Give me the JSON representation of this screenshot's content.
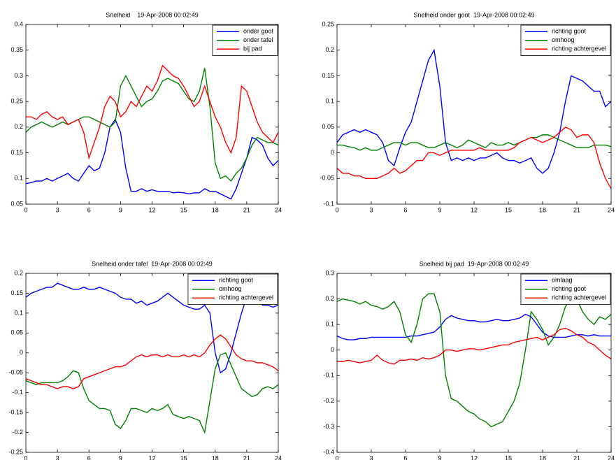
{
  "chart_data": [
    {
      "type": "line",
      "title": "Snelheid    19-Apr-2008 00:02:49",
      "x": [
        0,
        0.5,
        1,
        1.5,
        2,
        2.5,
        3,
        3.5,
        4,
        4.5,
        5,
        5.5,
        6,
        6.5,
        7,
        7.5,
        8,
        8.5,
        9,
        9.5,
        10,
        10.5,
        11,
        11.5,
        12,
        12.5,
        13,
        13.5,
        14,
        14.5,
        15,
        15.5,
        16,
        16.5,
        17,
        17.5,
        18,
        18.5,
        19,
        19.5,
        20,
        20.5,
        21,
        21.5,
        22,
        22.5,
        23,
        23.5,
        24
      ],
      "xlim": [
        0,
        24
      ],
      "xticks": [
        0,
        3,
        6,
        9,
        12,
        15,
        18,
        21,
        24
      ],
      "ylim": [
        0.05,
        0.4
      ],
      "yticks": [
        0.05,
        0.1,
        0.15,
        0.2,
        0.25,
        0.3,
        0.35,
        0.4
      ],
      "legend": "upper right",
      "series": [
        {
          "name": "onder goot",
          "color": "#0000ff",
          "values": [
            0.09,
            0.092,
            0.095,
            0.095,
            0.1,
            0.095,
            0.1,
            0.105,
            0.11,
            0.1,
            0.095,
            0.11,
            0.125,
            0.115,
            0.12,
            0.15,
            0.2,
            0.215,
            0.19,
            0.12,
            0.075,
            0.075,
            0.08,
            0.075,
            0.078,
            0.075,
            0.075,
            0.075,
            0.072,
            0.073,
            0.072,
            0.07,
            0.072,
            0.072,
            0.08,
            0.075,
            0.075,
            0.07,
            0.065,
            0.06,
            0.08,
            0.11,
            0.14,
            0.18,
            0.175,
            0.165,
            0.14,
            0.125,
            0.135
          ]
        },
        {
          "name": "onder tafel",
          "color": "#008000",
          "values": [
            0.19,
            0.2,
            0.205,
            0.21,
            0.205,
            0.2,
            0.205,
            0.21,
            0.205,
            0.21,
            0.215,
            0.22,
            0.22,
            0.215,
            0.21,
            0.205,
            0.2,
            0.21,
            0.28,
            0.3,
            0.28,
            0.26,
            0.24,
            0.25,
            0.255,
            0.27,
            0.29,
            0.295,
            0.29,
            0.285,
            0.27,
            0.255,
            0.25,
            0.27,
            0.315,
            0.24,
            0.13,
            0.1,
            0.105,
            0.095,
            0.11,
            0.12,
            0.14,
            0.165,
            0.18,
            0.175,
            0.17,
            0.17,
            0.165
          ]
        },
        {
          "name": "bij pad",
          "color": "#ff0000",
          "values": [
            0.22,
            0.22,
            0.215,
            0.225,
            0.23,
            0.22,
            0.215,
            0.22,
            0.205,
            0.21,
            0.215,
            0.19,
            0.14,
            0.17,
            0.2,
            0.24,
            0.26,
            0.25,
            0.22,
            0.23,
            0.25,
            0.24,
            0.26,
            0.28,
            0.27,
            0.29,
            0.32,
            0.31,
            0.3,
            0.295,
            0.28,
            0.26,
            0.24,
            0.25,
            0.28,
            0.25,
            0.22,
            0.2,
            0.17,
            0.15,
            0.18,
            0.28,
            0.27,
            0.24,
            0.21,
            0.19,
            0.18,
            0.17,
            0.19
          ]
        }
      ]
    },
    {
      "type": "line",
      "title": "Snelheid onder goot  19-Apr-2008 00:02:49",
      "x": [
        0,
        0.5,
        1,
        1.5,
        2,
        2.5,
        3,
        3.5,
        4,
        4.5,
        5,
        5.5,
        6,
        6.5,
        7,
        7.5,
        8,
        8.5,
        9,
        9.5,
        10,
        10.5,
        11,
        11.5,
        12,
        12.5,
        13,
        13.5,
        14,
        14.5,
        15,
        15.5,
        16,
        16.5,
        17,
        17.5,
        18,
        18.5,
        19,
        19.5,
        20,
        20.5,
        21,
        21.5,
        22,
        22.5,
        23,
        23.5,
        24
      ],
      "xlim": [
        0,
        24
      ],
      "xticks": [
        0,
        3,
        6,
        9,
        12,
        15,
        18,
        21,
        24
      ],
      "ylim": [
        -0.1,
        0.25
      ],
      "yticks": [
        -0.1,
        -0.05,
        0,
        0.05,
        0.1,
        0.15,
        0.2,
        0.25
      ],
      "legend": "upper right",
      "series": [
        {
          "name": "richting goot",
          "color": "#0000ff",
          "values": [
            0.02,
            0.035,
            0.04,
            0.045,
            0.04,
            0.045,
            0.04,
            0.035,
            0.02,
            -0.015,
            -0.025,
            0.01,
            0.04,
            0.06,
            0.1,
            0.14,
            0.18,
            0.2,
            0.13,
            0.02,
            -0.015,
            -0.01,
            -0.015,
            -0.01,
            -0.015,
            -0.01,
            -0.01,
            -0.005,
            0,
            -0.01,
            -0.015,
            -0.015,
            -0.02,
            -0.015,
            -0.01,
            -0.03,
            -0.04,
            -0.03,
            0,
            0.04,
            0.1,
            0.15,
            0.145,
            0.14,
            0.13,
            0.12,
            0.12,
            0.09,
            0.1
          ]
        },
        {
          "name": "omhoog",
          "color": "#008000",
          "values": [
            0.015,
            0.015,
            0.012,
            0.01,
            0.005,
            0.01,
            0.005,
            0.005,
            0.01,
            0.015,
            0.02,
            0.02,
            0.015,
            0.02,
            0.02,
            0.015,
            0.01,
            0.01,
            0.015,
            0.02,
            0.015,
            0.01,
            0.015,
            0.025,
            0.02,
            0.015,
            0.01,
            0.02,
            0.015,
            0.015,
            0.02,
            0.015,
            0.02,
            0.025,
            0.03,
            0.03,
            0.035,
            0.035,
            0.03,
            0.025,
            0.02,
            0.015,
            0.01,
            0.01,
            0.01,
            0.015,
            0.015,
            0.015,
            0.012
          ]
        },
        {
          "name": "richting achtergevel",
          "color": "#ff0000",
          "values": [
            -0.03,
            -0.04,
            -0.04,
            -0.045,
            -0.045,
            -0.05,
            -0.05,
            -0.05,
            -0.045,
            -0.04,
            -0.03,
            -0.04,
            -0.035,
            -0.025,
            -0.015,
            -0.015,
            0,
            0,
            -0.005,
            0,
            0.005,
            0.005,
            0.005,
            0.005,
            0.005,
            0.01,
            0.005,
            0.005,
            0.005,
            0.005,
            0.005,
            0.01,
            0.02,
            0.025,
            0.03,
            0.025,
            0.02,
            0.025,
            0.03,
            0.04,
            0.05,
            0.045,
            0.03,
            0.035,
            0.035,
            0.02,
            -0.02,
            -0.05,
            -0.07
          ]
        }
      ]
    },
    {
      "type": "line",
      "title": "Snelheid onder tafel  19-Apr-2008 00:02:49",
      "x": [
        0,
        0.5,
        1,
        1.5,
        2,
        2.5,
        3,
        3.5,
        4,
        4.5,
        5,
        5.5,
        6,
        6.5,
        7,
        7.5,
        8,
        8.5,
        9,
        9.5,
        10,
        10.5,
        11,
        11.5,
        12,
        12.5,
        13,
        13.5,
        14,
        14.5,
        15,
        15.5,
        16,
        16.5,
        17,
        17.5,
        18,
        18.5,
        19,
        19.5,
        20,
        20.5,
        21,
        21.5,
        22,
        22.5,
        23,
        23.5,
        24
      ],
      "xlim": [
        0,
        24
      ],
      "xticks": [
        0,
        3,
        6,
        9,
        12,
        15,
        18,
        21,
        24
      ],
      "ylim": [
        -0.25,
        0.2
      ],
      "yticks": [
        -0.25,
        -0.2,
        -0.15,
        -0.1,
        -0.05,
        0,
        0.05,
        0.1,
        0.15,
        0.2
      ],
      "legend": "upper right",
      "series": [
        {
          "name": "richting goot",
          "color": "#0000ff",
          "values": [
            0.14,
            0.15,
            0.155,
            0.16,
            0.165,
            0.165,
            0.175,
            0.17,
            0.165,
            0.16,
            0.16,
            0.165,
            0.16,
            0.16,
            0.165,
            0.16,
            0.155,
            0.15,
            0.14,
            0.135,
            0.135,
            0.125,
            0.13,
            0.12,
            0.125,
            0.13,
            0.14,
            0.15,
            0.14,
            0.13,
            0.12,
            0.115,
            0.11,
            0.11,
            0.12,
            0.1,
            0,
            -0.05,
            -0.04,
            0,
            0.05,
            0.1,
            0.14,
            0.15,
            0.14,
            0.12,
            0.12,
            0.115,
            0.12
          ]
        },
        {
          "name": "omhoog",
          "color": "#008000",
          "values": [
            -0.07,
            -0.075,
            -0.08,
            -0.075,
            -0.075,
            -0.075,
            -0.075,
            -0.07,
            -0.06,
            -0.045,
            -0.05,
            -0.09,
            -0.12,
            -0.13,
            -0.14,
            -0.14,
            -0.145,
            -0.18,
            -0.19,
            -0.17,
            -0.14,
            -0.14,
            -0.145,
            -0.15,
            -0.14,
            -0.145,
            -0.14,
            -0.13,
            -0.155,
            -0.16,
            -0.165,
            -0.16,
            -0.165,
            -0.17,
            -0.2,
            -0.12,
            -0.04,
            -0.005,
            0,
            -0.03,
            -0.06,
            -0.09,
            -0.1,
            -0.11,
            -0.105,
            -0.09,
            -0.085,
            -0.09,
            -0.08
          ]
        },
        {
          "name": "richting achtergevel",
          "color": "#ff0000",
          "values": [
            -0.065,
            -0.07,
            -0.075,
            -0.08,
            -0.08,
            -0.085,
            -0.09,
            -0.085,
            -0.085,
            -0.09,
            -0.085,
            -0.065,
            -0.06,
            -0.055,
            -0.05,
            -0.045,
            -0.04,
            -0.035,
            -0.035,
            -0.03,
            -0.02,
            -0.01,
            -0.005,
            -0.01,
            -0.005,
            -0.005,
            -0.01,
            -0.005,
            -0.01,
            -0.01,
            -0.005,
            -0.01,
            -0.005,
            -0.01,
            0,
            0.02,
            0.035,
            0.045,
            0.035,
            0.015,
            -0.005,
            -0.015,
            -0.02,
            -0.02,
            -0.025,
            -0.025,
            -0.03,
            -0.035,
            -0.045
          ]
        }
      ]
    },
    {
      "type": "line",
      "title": "Snelheid bij pad  19-Apr-2008 00:02:49",
      "x": [
        0,
        0.5,
        1,
        1.5,
        2,
        2.5,
        3,
        3.5,
        4,
        4.5,
        5,
        5.5,
        6,
        6.5,
        7,
        7.5,
        8,
        8.5,
        9,
        9.5,
        10,
        10.5,
        11,
        11.5,
        12,
        12.5,
        13,
        13.5,
        14,
        14.5,
        15,
        15.5,
        16,
        16.5,
        17,
        17.5,
        18,
        18.5,
        19,
        19.5,
        20,
        20.5,
        21,
        21.5,
        22,
        22.5,
        23,
        23.5,
        24
      ],
      "xlim": [
        0,
        24
      ],
      "xticks": [
        0,
        3,
        6,
        9,
        12,
        15,
        18,
        21,
        24
      ],
      "ylim": [
        -0.4,
        0.3
      ],
      "yticks": [
        -0.4,
        -0.3,
        -0.2,
        -0.1,
        0,
        0.1,
        0.2,
        0.3
      ],
      "legend": "upper right",
      "series": [
        {
          "name": "omlaag",
          "color": "#0000ff",
          "values": [
            0.055,
            0.045,
            0.04,
            0.04,
            0.045,
            0.045,
            0.05,
            0.05,
            0.05,
            0.05,
            0.05,
            0.05,
            0.05,
            0.055,
            0.055,
            0.06,
            0.065,
            0.07,
            0.09,
            0.12,
            0.135,
            0.125,
            0.12,
            0.115,
            0.115,
            0.11,
            0.11,
            0.115,
            0.12,
            0.115,
            0.115,
            0.12,
            0.125,
            0.14,
            0.13,
            0.1,
            0.07,
            0.055,
            0.05,
            0.05,
            0.05,
            0.055,
            0.06,
            0.06,
            0.055,
            0.06,
            0.055,
            0.055,
            0.055
          ]
        },
        {
          "name": "richting goot",
          "color": "#008000",
          "values": [
            0.19,
            0.2,
            0.195,
            0.19,
            0.18,
            0.19,
            0.175,
            0.17,
            0.16,
            0.17,
            0.19,
            0.15,
            0.06,
            0.03,
            0.1,
            0.2,
            0.22,
            0.22,
            0.15,
            -0.1,
            -0.19,
            -0.2,
            -0.22,
            -0.24,
            -0.25,
            -0.27,
            -0.28,
            -0.3,
            -0.29,
            -0.28,
            -0.24,
            -0.2,
            -0.13,
            0,
            0.15,
            0.12,
            0.08,
            0.02,
            0.05,
            0.1,
            0.17,
            0.2,
            0.2,
            0.15,
            0.12,
            0.1,
            0.13,
            0.12,
            0.14
          ]
        },
        {
          "name": "richting achtergevel",
          "color": "#ff0000",
          "values": [
            -0.045,
            -0.045,
            -0.04,
            -0.045,
            -0.05,
            -0.045,
            -0.04,
            -0.02,
            -0.04,
            -0.05,
            -0.055,
            -0.04,
            -0.04,
            -0.035,
            -0.04,
            -0.03,
            -0.035,
            -0.03,
            -0.02,
            0,
            0,
            -0.005,
            0,
            0.005,
            0.005,
            0,
            0.005,
            0.01,
            0.015,
            0.02,
            0.02,
            0.03,
            0.035,
            0.04,
            0.045,
            0.05,
            0.04,
            0.05,
            0.06,
            0.08,
            0.085,
            0.075,
            0.06,
            0.05,
            0.03,
            0.02,
            0,
            -0.02,
            -0.035
          ]
        }
      ]
    }
  ]
}
